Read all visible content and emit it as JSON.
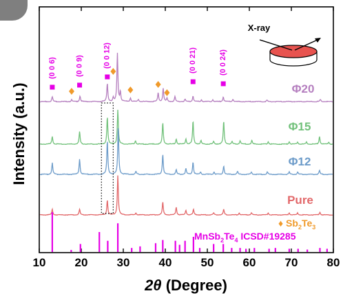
{
  "chart_data": {
    "type": "line",
    "title": "",
    "xlabel": "2θ (Degree)",
    "xlabel_theta": "2θ",
    "xlabel_rest": " (Degree)",
    "ylabel": "Intensity (a.u.)",
    "xlim": [
      10,
      80
    ],
    "x_ticks": [
      10,
      20,
      30,
      40,
      50,
      60,
      70,
      80
    ],
    "y_ticks_shown": false,
    "grid": false,
    "series": [
      {
        "name": "Φ20",
        "color": "#b57fbf",
        "peaks": [
          {
            "x": 13.1,
            "h": 0.1
          },
          {
            "x": 17.7,
            "h": 0.04
          },
          {
            "x": 19.7,
            "h": 0.12
          },
          {
            "x": 26.2,
            "h": 0.38
          },
          {
            "x": 27.6,
            "h": 0.08
          },
          {
            "x": 28.6,
            "h": 1.0
          },
          {
            "x": 29.3,
            "h": 0.2
          },
          {
            "x": 31.7,
            "h": 0.08
          },
          {
            "x": 33.6,
            "h": 0.05
          },
          {
            "x": 38.3,
            "h": 0.18
          },
          {
            "x": 39.5,
            "h": 0.28
          },
          {
            "x": 40.4,
            "h": 0.07
          },
          {
            "x": 42.3,
            "h": 0.1
          },
          {
            "x": 44.7,
            "h": 0.05
          },
          {
            "x": 46.6,
            "h": 0.12
          },
          {
            "x": 48.6,
            "h": 0.04
          },
          {
            "x": 51.3,
            "h": 0.04
          },
          {
            "x": 53.8,
            "h": 0.1
          },
          {
            "x": 56.1,
            "h": 0.05
          },
          {
            "x": 64.2,
            "h": 0.03
          },
          {
            "x": 76.9,
            "h": 0.04
          }
        ]
      },
      {
        "name": "Φ15",
        "color": "#72c17b",
        "peaks": [
          {
            "x": 13.1,
            "h": 0.18
          },
          {
            "x": 19.6,
            "h": 0.28
          },
          {
            "x": 26.2,
            "h": 0.62
          },
          {
            "x": 28.7,
            "h": 0.78
          },
          {
            "x": 32.9,
            "h": 0.08
          },
          {
            "x": 39.4,
            "h": 0.48
          },
          {
            "x": 42.6,
            "h": 0.12
          },
          {
            "x": 44.9,
            "h": 0.12
          },
          {
            "x": 46.6,
            "h": 0.52
          },
          {
            "x": 48.5,
            "h": 0.08
          },
          {
            "x": 51.5,
            "h": 0.06
          },
          {
            "x": 53.9,
            "h": 0.52
          },
          {
            "x": 55.9,
            "h": 0.06
          },
          {
            "x": 57.8,
            "h": 0.08
          },
          {
            "x": 60.6,
            "h": 0.08
          },
          {
            "x": 64.5,
            "h": 0.06
          },
          {
            "x": 69.5,
            "h": 0.06
          },
          {
            "x": 71.5,
            "h": 0.05
          },
          {
            "x": 73.6,
            "h": 0.05
          },
          {
            "x": 76.7,
            "h": 0.18
          },
          {
            "x": 78.9,
            "h": 0.05
          }
        ]
      },
      {
        "name": "Φ12",
        "color": "#6c9bc9",
        "peaks": [
          {
            "x": 13.1,
            "h": 0.24
          },
          {
            "x": 19.6,
            "h": 0.32
          },
          {
            "x": 26.2,
            "h": 0.7
          },
          {
            "x": 28.8,
            "h": 1.0
          },
          {
            "x": 33.0,
            "h": 0.06
          },
          {
            "x": 39.4,
            "h": 0.42
          },
          {
            "x": 42.6,
            "h": 0.1
          },
          {
            "x": 44.9,
            "h": 0.12
          },
          {
            "x": 46.6,
            "h": 0.26
          },
          {
            "x": 48.4,
            "h": 0.05
          },
          {
            "x": 51.6,
            "h": 0.05
          },
          {
            "x": 53.9,
            "h": 0.18
          },
          {
            "x": 57.2,
            "h": 0.06
          },
          {
            "x": 60.5,
            "h": 0.05
          },
          {
            "x": 64.3,
            "h": 0.05
          },
          {
            "x": 69.5,
            "h": 0.05
          },
          {
            "x": 71.5,
            "h": 0.05
          },
          {
            "x": 76.7,
            "h": 0.08
          }
        ]
      },
      {
        "name": "Pure",
        "color": "#e2686a",
        "peaks": [
          {
            "x": 13.1,
            "h": 0.14
          },
          {
            "x": 19.6,
            "h": 0.14
          },
          {
            "x": 26.2,
            "h": 0.38
          },
          {
            "x": 28.7,
            "h": 1.0
          },
          {
            "x": 33.0,
            "h": 0.05
          },
          {
            "x": 39.4,
            "h": 0.32
          },
          {
            "x": 42.6,
            "h": 0.2
          },
          {
            "x": 44.9,
            "h": 0.12
          },
          {
            "x": 46.7,
            "h": 0.14
          },
          {
            "x": 51.5,
            "h": 0.05
          },
          {
            "x": 53.9,
            "h": 0.14
          },
          {
            "x": 57.6,
            "h": 0.05
          },
          {
            "x": 60.5,
            "h": 0.06
          },
          {
            "x": 64.5,
            "h": 0.05
          },
          {
            "x": 69.5,
            "h": 0.05
          },
          {
            "x": 71.5,
            "h": 0.05
          },
          {
            "x": 76.8,
            "h": 0.07
          }
        ]
      }
    ],
    "reference": {
      "name": "MnSb2Te4 ICSD#19285",
      "label_main": "MnSb",
      "label_sub1": "2",
      "label_mid": "Te",
      "label_sub2": "4",
      "label_card": "ICSD#19285",
      "color": "#e600e6",
      "sticks": [
        {
          "x": 13.1,
          "h": 1.0
        },
        {
          "x": 17.6,
          "h": 0.05
        },
        {
          "x": 19.8,
          "h": 0.2
        },
        {
          "x": 24.3,
          "h": 0.5
        },
        {
          "x": 26.3,
          "h": 0.28
        },
        {
          "x": 28.7,
          "h": 0.72
        },
        {
          "x": 32.0,
          "h": 0.1
        },
        {
          "x": 34.0,
          "h": 0.14
        },
        {
          "x": 37.7,
          "h": 0.22
        },
        {
          "x": 39.4,
          "h": 0.3
        },
        {
          "x": 42.4,
          "h": 0.28
        },
        {
          "x": 43.4,
          "h": 0.18
        },
        {
          "x": 44.7,
          "h": 0.28
        },
        {
          "x": 46.7,
          "h": 0.38
        },
        {
          "x": 48.2,
          "h": 0.1
        },
        {
          "x": 51.5,
          "h": 0.2
        },
        {
          "x": 53.8,
          "h": 0.2
        },
        {
          "x": 55.8,
          "h": 0.1
        },
        {
          "x": 57.8,
          "h": 0.1
        },
        {
          "x": 59.2,
          "h": 0.08
        },
        {
          "x": 61.2,
          "h": 0.1
        },
        {
          "x": 64.7,
          "h": 0.08
        },
        {
          "x": 66.2,
          "h": 0.1
        },
        {
          "x": 69.5,
          "h": 0.08
        },
        {
          "x": 71.6,
          "h": 0.08
        },
        {
          "x": 73.8,
          "h": 0.06
        },
        {
          "x": 76.8,
          "h": 0.1
        },
        {
          "x": 78.5,
          "h": 0.08
        }
      ]
    },
    "miller_labels": [
      {
        "text": "(0 0 6)",
        "x": 13.1
      },
      {
        "text": "(0 0 9)",
        "x": 19.6
      },
      {
        "text": "(0 0 12)",
        "x": 26.2
      },
      {
        "text": "(0 0 21)",
        "x": 46.6
      },
      {
        "text": "(0 0 24)",
        "x": 53.8
      }
    ],
    "miller_color": "#e600e6",
    "impurity_markers": {
      "name": "Sb2Te3",
      "label_prefix": "♦ Sb",
      "label_sub1": "2",
      "label_mid": "Te",
      "label_sub2": "3",
      "symbol": "♦",
      "color": "#f09a2a",
      "x": [
        17.7,
        27.6,
        31.7,
        38.3,
        40.4
      ]
    },
    "highlight_box": {
      "x_range": [
        24.8,
        27.6
      ],
      "style": "dotted"
    },
    "inset": {
      "label": "X-ray",
      "disk_color": "#e8534f"
    }
  }
}
